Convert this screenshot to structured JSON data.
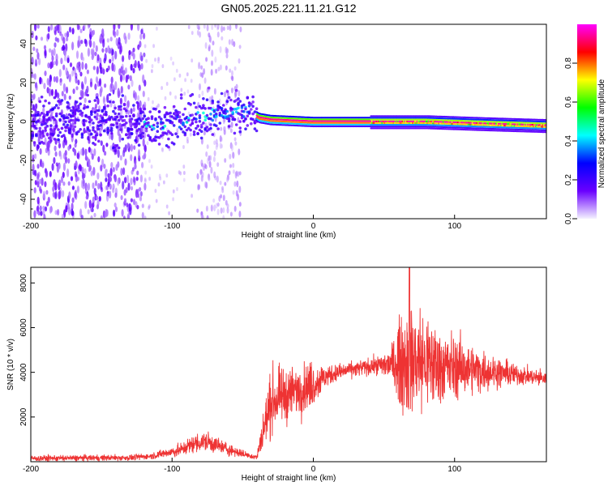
{
  "title": "GN05.2025.221.11.21.G12",
  "chart_data": [
    {
      "type": "heatmap",
      "xlabel": "Height of straight line (km)",
      "ylabel": "Frequency (Hz)",
      "xlim": [
        -200,
        165
      ],
      "ylim": [
        -50,
        50
      ],
      "xticks": [
        -200,
        -100,
        0,
        100
      ],
      "yticks": [
        -40,
        -20,
        0,
        20,
        40
      ],
      "colorbar": {
        "label": "Normalized spectral amplitude",
        "range": [
          0,
          1
        ],
        "ticks": [
          0.0,
          0.2,
          0.4,
          0.6,
          0.8
        ],
        "tick_labels": [
          "0.0",
          "0.2",
          "0.4",
          "0.6",
          "0.8"
        ],
        "colors": [
          "#f4f2ff",
          "#6a00ff",
          "#0000ff",
          "#00ffff",
          "#00ff00",
          "#ffff00",
          "#ff0000",
          "#ff00ff"
        ]
      },
      "ridge": {
        "x": [
          -200,
          -170,
          -140,
          -120,
          -100,
          -80,
          -60,
          -45,
          -38,
          -30,
          0,
          40,
          80,
          120,
          165
        ],
        "frequency": [
          0,
          1,
          0,
          -2,
          -1,
          2,
          5,
          5,
          2,
          1,
          0,
          0,
          0,
          -1,
          -2
        ]
      },
      "regions": [
        {
          "x_range": [
            -200,
            -120
          ],
          "description": "diffuse noise"
        },
        {
          "x_range": [
            -82,
            -52
          ],
          "description": "diffuse noise"
        },
        {
          "x_range": [
            -120,
            -40
          ],
          "description": "scattered signal around ridge"
        },
        {
          "x_range": [
            -40,
            165
          ],
          "description": "strong narrow signal near 0 Hz"
        }
      ]
    },
    {
      "type": "line",
      "xlabel": "Height of straight line (km)",
      "ylabel": "SNR (10 * v/v)",
      "xlim": [
        -200,
        165
      ],
      "ylim": [
        0,
        8700
      ],
      "xticks": [
        -200,
        -100,
        0,
        100
      ],
      "yticks": [
        2000,
        4000,
        6000,
        8000
      ],
      "color": "#ee3333",
      "envelope": {
        "x": [
          -200,
          -130,
          -115,
          -95,
          -85,
          -75,
          -65,
          -50,
          -40,
          -35,
          -30,
          -15,
          0,
          10,
          25,
          45,
          55,
          62,
          68,
          75,
          90,
          110,
          130,
          150,
          165
        ],
        "mean": [
          150,
          180,
          250,
          500,
          800,
          900,
          650,
          350,
          200,
          1500,
          2700,
          3100,
          3500,
          3850,
          4100,
          4300,
          4350,
          4500,
          4650,
          4500,
          4300,
          4150,
          4000,
          3850,
          3700
        ],
        "amp": [
          120,
          120,
          120,
          250,
          350,
          400,
          300,
          150,
          100,
          900,
          1200,
          1000,
          900,
          400,
          300,
          350,
          700,
          1800,
          2500,
          2200,
          1500,
          1000,
          600,
          350,
          300
        ]
      },
      "peak": {
        "x": 68,
        "y": 8700
      }
    }
  ]
}
